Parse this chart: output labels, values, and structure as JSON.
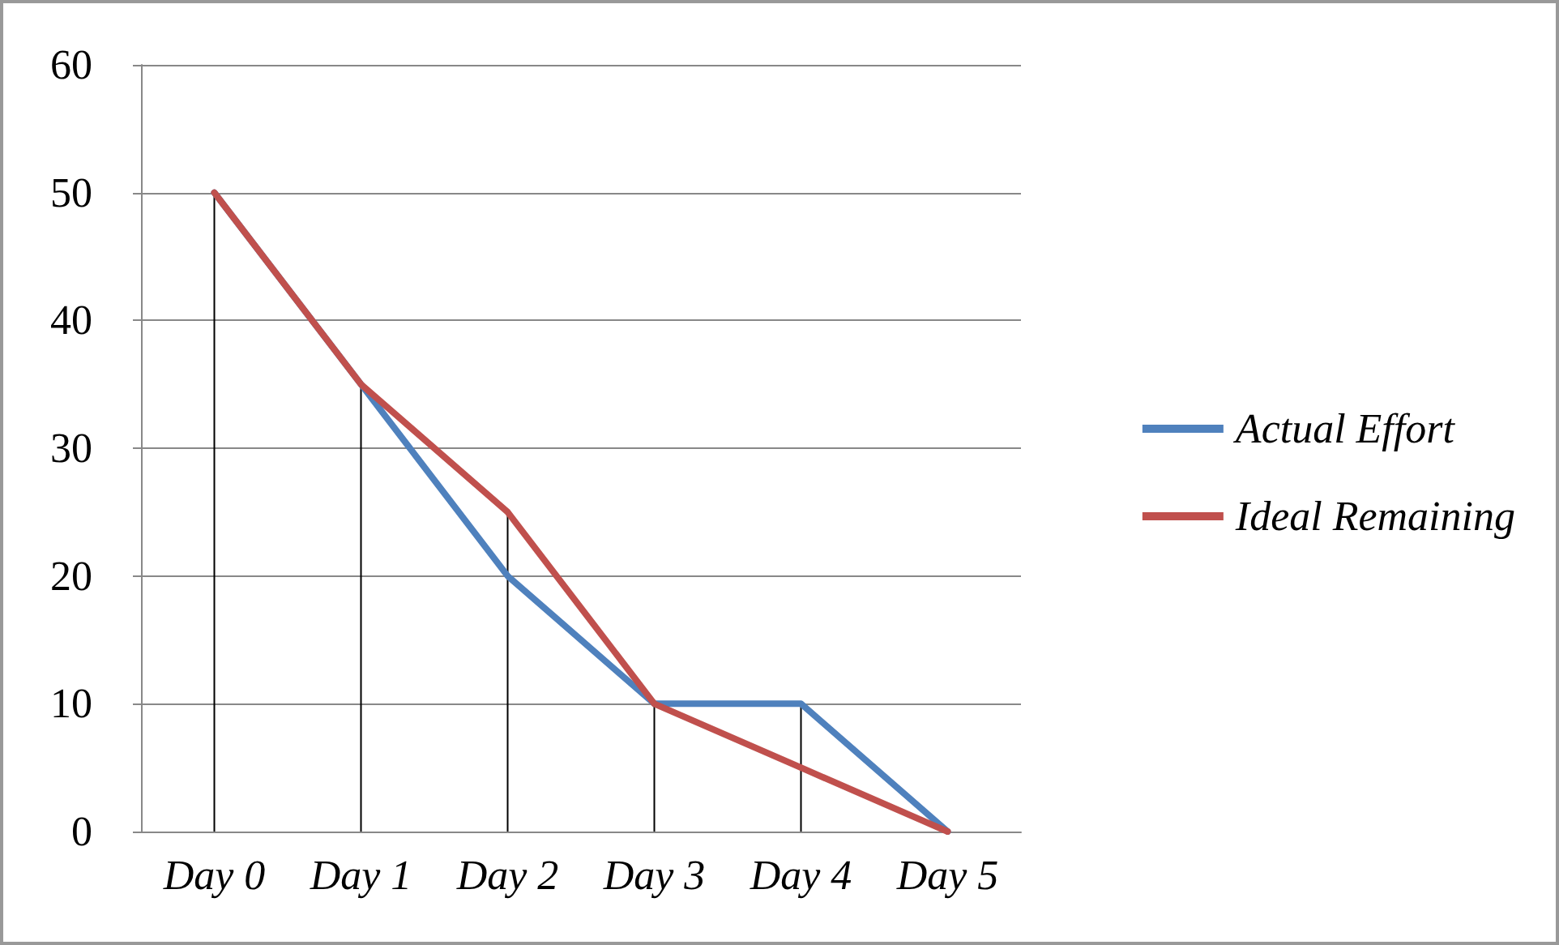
{
  "chart_data": {
    "type": "line",
    "categories": [
      "Day 0",
      "Day 1",
      "Day 2",
      "Day 3",
      "Day 4",
      "Day 5"
    ],
    "series": [
      {
        "name": "Actual Effort",
        "color": "#4f81bd",
        "values": [
          50,
          35,
          20,
          10,
          10,
          0
        ],
        "errors": [
          null,
          null,
          null,
          null,
          [
            0,
            10
          ],
          null
        ]
      },
      {
        "name": "Ideal Remaining",
        "color": "#c0504d",
        "values": [
          50,
          35,
          25,
          10,
          5,
          0
        ],
        "errors": [
          [
            0,
            50
          ],
          [
            0,
            35
          ],
          [
            0,
            25
          ],
          [
            0,
            10
          ],
          null,
          null
        ]
      }
    ],
    "ylim": [
      0,
      60
    ],
    "yticks": [
      0,
      10,
      20,
      30,
      40,
      50,
      60
    ],
    "grid": "y",
    "legend": "right",
    "marker": "none",
    "line_style": "solid"
  }
}
